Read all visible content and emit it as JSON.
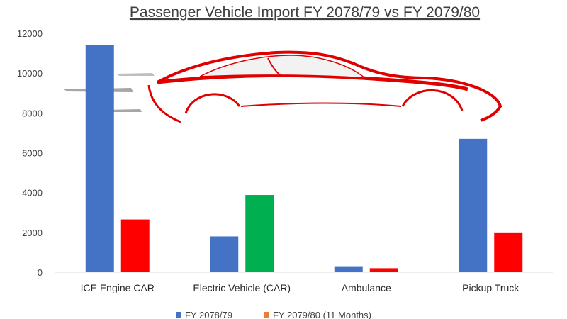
{
  "chart_data": {
    "type": "bar",
    "title": "Passenger Vehicle Import FY 2078/79 vs FY 2079/80",
    "categories": [
      "ICE Engine CAR",
      "Electric Vehicle (CAR)",
      "Ambulance",
      "Pickup Truck"
    ],
    "series": [
      {
        "name": "FY 2078/79",
        "values": [
          11400,
          1800,
          300,
          6700
        ],
        "color": "#4472C4"
      },
      {
        "name": "FY 2079/80 (11 Months)",
        "values": [
          2650,
          3880,
          200,
          2000
        ],
        "color": "#ED7D31"
      }
    ],
    "bar_colors_shown": {
      "FY 2079/80 (11 Months)": [
        "#FF0000",
        "#00B050",
        "#FF0000",
        "#FF0000"
      ]
    },
    "ylim": [
      0,
      12000
    ],
    "yticks": [
      "0",
      "2000",
      "4000",
      "6000",
      "8000",
      "10000",
      "12000"
    ],
    "grid": false,
    "legend": "bottom",
    "decoration": "red car silhouette drawing",
    "car_color": "#E00000"
  }
}
